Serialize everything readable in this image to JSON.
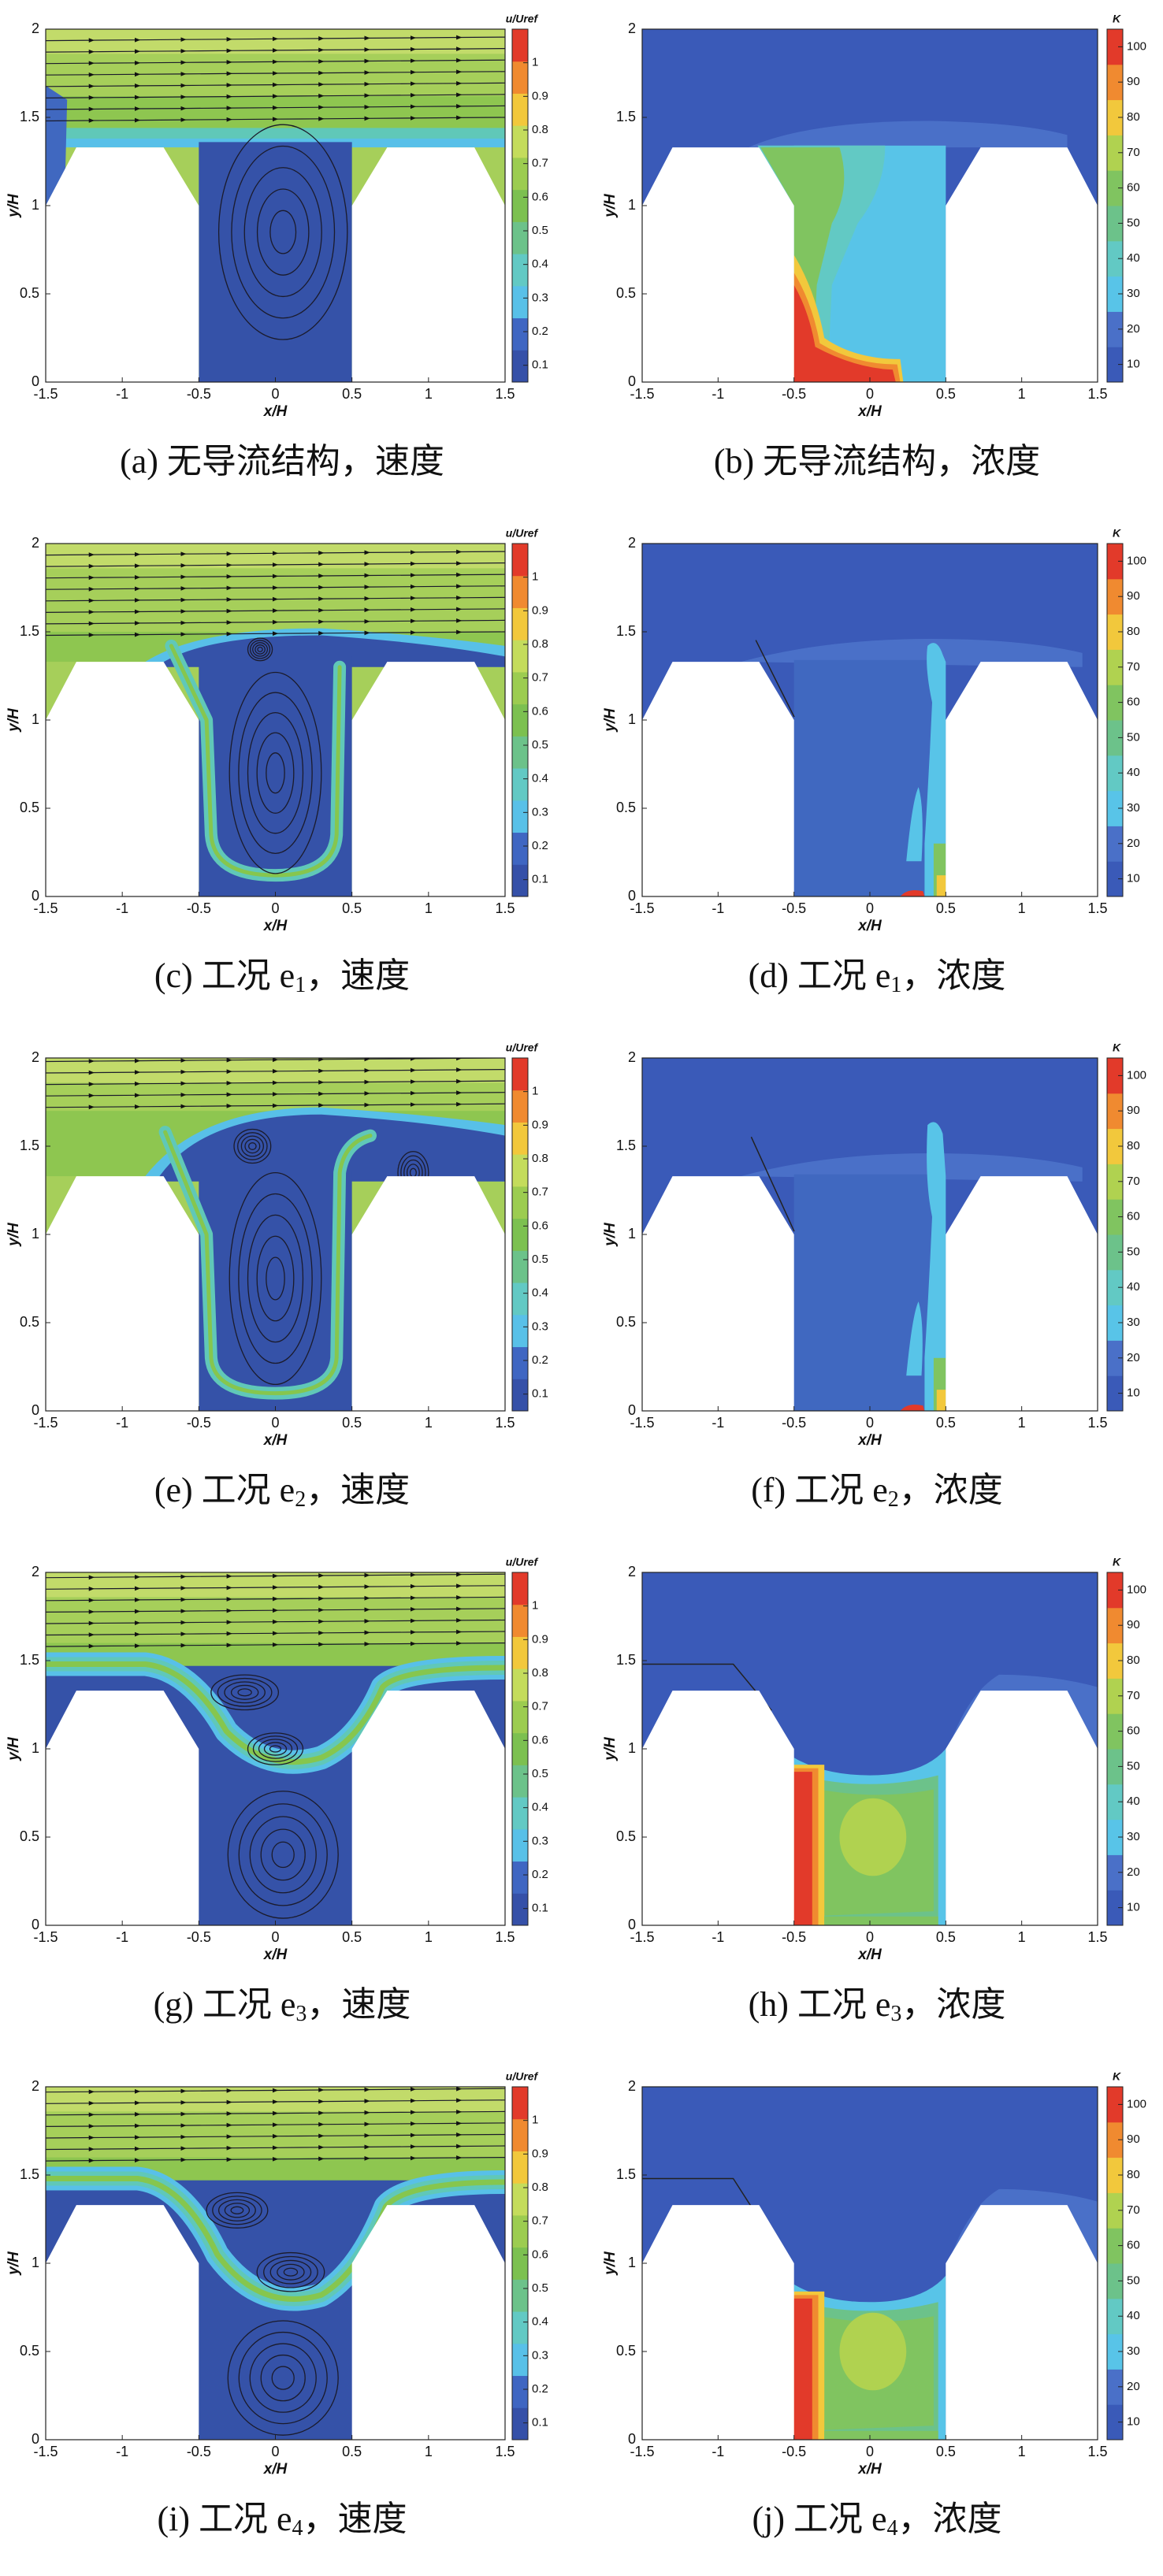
{
  "axes": {
    "xlim": [
      -1.5,
      1.5
    ],
    "ylim": [
      0,
      2
    ],
    "xticks": [
      -1.5,
      -1,
      -0.5,
      0,
      0.5,
      1,
      1.5
    ],
    "yticks": [
      0,
      0.5,
      1,
      1.5,
      2
    ],
    "xlabel": "x/H",
    "ylabel": "y/H"
  },
  "colorbars": {
    "velocity": {
      "title": "u/Uref",
      "lim": [
        0.05,
        1.1
      ],
      "ticks": [
        0.1,
        0.2,
        0.3,
        0.4,
        0.5,
        0.6,
        0.7,
        0.8,
        0.9,
        1
      ],
      "colors": [
        "#3550a8",
        "#3f66c2",
        "#58c0e8",
        "#62c9c4",
        "#6cc28a",
        "#7cc050",
        "#9ccc50",
        "#c4dc5c",
        "#f2c83c",
        "#f08a30",
        "#e23a2a"
      ]
    },
    "concentration": {
      "title": "K",
      "lim": [
        5,
        105
      ],
      "ticks": [
        10,
        20,
        30,
        40,
        50,
        60,
        70,
        80,
        90,
        100
      ],
      "colors": [
        "#3a5ab8",
        "#4a70c8",
        "#58c4e8",
        "#62c9c4",
        "#6cc28a",
        "#80c460",
        "#b0d250",
        "#f2c83c",
        "#f08a30",
        "#e23a2a"
      ]
    }
  },
  "panels": [
    {
      "field": "velocity",
      "caption": {
        "text": "(a) 无导流结构，速度"
      }
    },
    {
      "field": "concentration",
      "caption": {
        "text": "(b) 无导流结构，浓度"
      }
    },
    {
      "field": "velocity",
      "caption": {
        "text": "(c) 工况 e",
        "sub": "1",
        "tail": "，速度"
      }
    },
    {
      "field": "concentration",
      "caption": {
        "text": "(d) 工况 e",
        "sub": "1",
        "tail": "，浓度"
      }
    },
    {
      "field": "velocity",
      "caption": {
        "text": "(e) 工况 e",
        "sub": "2",
        "tail": "，速度"
      }
    },
    {
      "field": "concentration",
      "caption": {
        "text": "(f) 工况 e",
        "sub": "2",
        "tail": "，浓度"
      }
    },
    {
      "field": "velocity",
      "caption": {
        "text": "(g) 工况 e",
        "sub": "3",
        "tail": "，速度"
      }
    },
    {
      "field": "concentration",
      "caption": {
        "text": "(h) 工况 e",
        "sub": "3",
        "tail": "，浓度"
      }
    },
    {
      "field": "velocity",
      "caption": {
        "text": "(i) 工况 e",
        "sub": "4",
        "tail": "，速度"
      }
    },
    {
      "field": "concentration",
      "caption": {
        "text": "(j) 工况 e",
        "sub": "4",
        "tail": "，浓度"
      }
    }
  ]
}
